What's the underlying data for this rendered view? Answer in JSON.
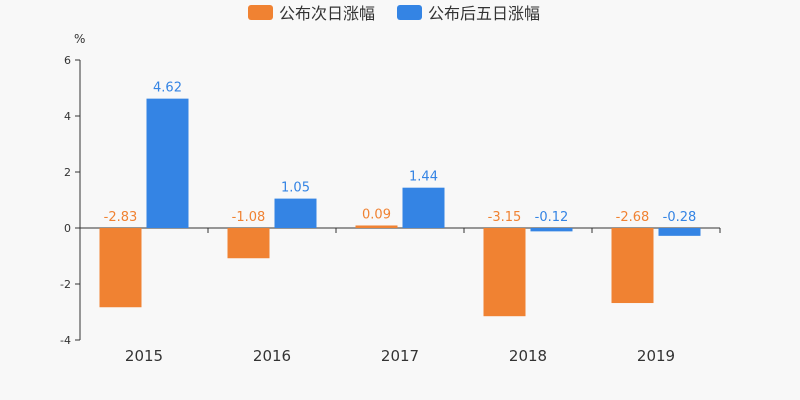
{
  "chart_data": {
    "type": "bar",
    "categories": [
      "2015",
      "2016",
      "2017",
      "2018",
      "2019"
    ],
    "series": [
      {
        "name": "公布次日涨幅",
        "values": [
          -2.83,
          -1.08,
          0.09,
          -3.15,
          -2.68
        ],
        "color": "#f08232"
      },
      {
        "name": "公布后五日涨幅",
        "values": [
          4.62,
          1.05,
          1.44,
          -0.12,
          -0.28
        ],
        "color": "#3484e4"
      }
    ],
    "ylabel": "%",
    "ylim": [
      -4,
      6
    ],
    "yticks": [
      -4,
      -2,
      0,
      2,
      4,
      6
    ],
    "legend_position": "top-center",
    "grid": false
  }
}
